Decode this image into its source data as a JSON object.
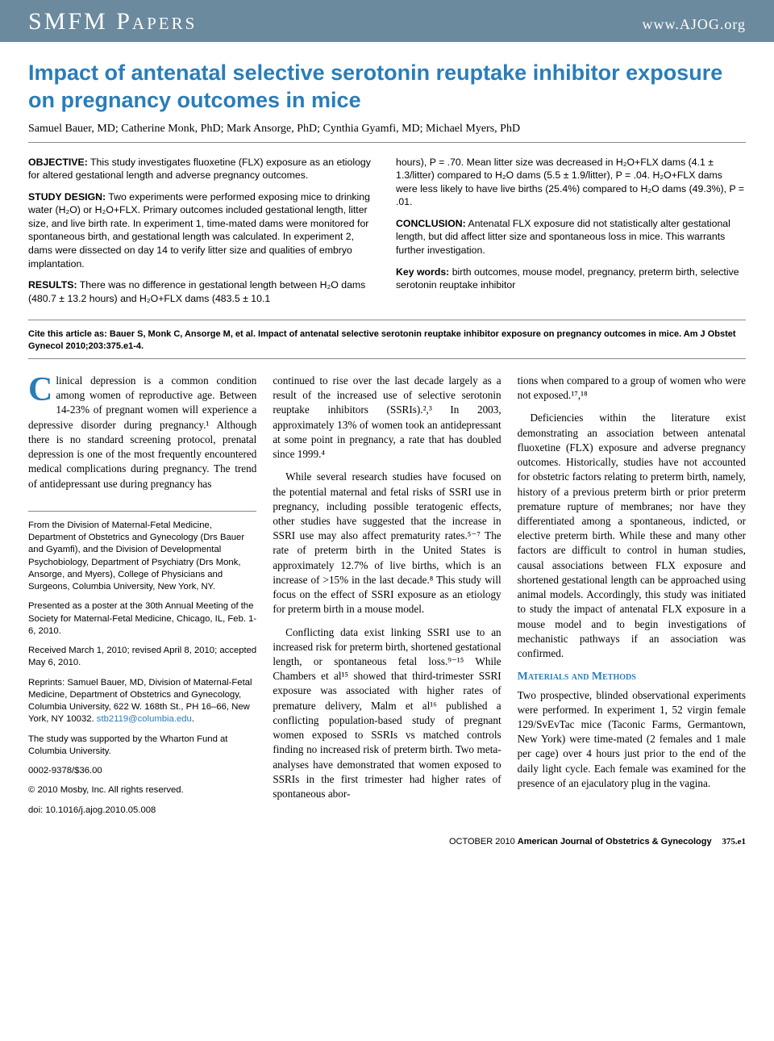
{
  "header": {
    "section": "SMFM Papers",
    "site": "www.AJOG.org"
  },
  "title": "Impact of antenatal selective serotonin reuptake inhibitor exposure on pregnancy outcomes in mice",
  "authors": "Samuel Bauer, MD; Catherine Monk, PhD; Mark Ansorge, PhD; Cynthia Gyamfi, MD; Michael Myers, PhD",
  "abstract": {
    "left": {
      "objective_label": "OBJECTIVE:",
      "objective": " This study investigates fluoxetine (FLX) exposure as an etiology for altered gestational length and adverse pregnancy outcomes.",
      "design_label": "STUDY DESIGN:",
      "design": " Two experiments were performed exposing mice to drinking water (H₂O) or H₂O+FLX. Primary outcomes included gestational length, litter size, and live birth rate. In experiment 1, time-mated dams were monitored for spontaneous birth, and gestational length was calculated. In experiment 2, dams were dissected on day 14 to verify litter size and qualities of embryo implantation.",
      "results_label": "RESULTS:",
      "results": " There was no difference in gestational length between H₂O dams (480.7 ± 13.2 hours) and H₂O+FLX dams (483.5 ± 10.1"
    },
    "right": {
      "results_cont": "hours), P = .70. Mean litter size was decreased in H₂O+FLX dams (4.1 ± 1.3/litter) compared to H₂O dams (5.5 ± 1.9/litter), P = .04. H₂O+FLX dams were less likely to have live births (25.4%) compared to H₂O dams (49.3%), P = .01.",
      "conclusion_label": "CONCLUSION:",
      "conclusion": " Antenatal FLX exposure did not statistically alter gestational length, but did affect litter size and spontaneous loss in mice. This warrants further investigation.",
      "keywords_label": "Key words:",
      "keywords": " birth outcomes, mouse model, pregnancy, preterm birth, selective serotonin reuptake inhibitor"
    }
  },
  "citation": {
    "lead": "Cite this article as: ",
    "text": "Bauer S, Monk C, Ansorge M, et al. Impact of antenatal selective serotonin reuptake inhibitor exposure on pregnancy outcomes in mice. Am J Obstet Gynecol 2010;203:375.e1-4."
  },
  "body": {
    "col1": {
      "p1_drop": "C",
      "p1": "linical depression is a common condition among women of reproductive age. Between 14-23% of pregnant women will experience a depressive disorder during pregnancy.¹ Although there is no standard screening protocol, prenatal depression is one of the most frequently encountered medical complications during pregnancy. The trend of antidepressant use during pregnancy has",
      "affil": {
        "p1": "From the Division of Maternal-Fetal Medicine, Department of Obstetrics and Gynecology (Drs Bauer and Gyamfi), and the Division of Developmental Psychobiology, Department of Psychiatry (Drs Monk, Ansorge, and Myers), College of Physicians and Surgeons, Columbia University, New York, NY.",
        "p2": "Presented as a poster at the 30th Annual Meeting of the Society for Maternal-Fetal Medicine, Chicago, IL, Feb. 1-6, 2010.",
        "p3": "Received March 1, 2010; revised April 8, 2010; accepted May 6, 2010.",
        "p4a": "Reprints: Samuel Bauer, MD, Division of Maternal-Fetal Medicine, Department of Obstetrics and Gynecology, Columbia University, 622 W. 168th St., PH 16–66, New York, NY 10032. ",
        "p4_email": "stb2119@columbia.edu",
        "p4b": ".",
        "p5": "The study was supported by the Wharton Fund at Columbia University.",
        "p6": "0002-9378/$36.00",
        "p7": "© 2010 Mosby, Inc. All rights reserved.",
        "p8": "doi: 10.1016/j.ajog.2010.05.008"
      }
    },
    "col2": {
      "p1": "continued to rise over the last decade largely as a result of the increased use of selective serotonin reuptake inhibitors (SSRIs).²,³ In 2003, approximately 13% of women took an antidepressant at some point in pregnancy, a rate that has doubled since 1999.⁴",
      "p2": "While several research studies have focused on the potential maternal and fetal risks of SSRI use in pregnancy, including possible teratogenic effects, other studies have suggested that the increase in SSRI use may also affect prematurity rates.⁵⁻⁷ The rate of preterm birth in the United States is approximately 12.7% of live births, which is an increase of >15% in the last decade.⁸ This study will focus on the effect of SSRI exposure as an etiology for preterm birth in a mouse model.",
      "p3": "Conflicting data exist linking SSRI use to an increased risk for preterm birth, shortened gestational length, or spontaneous fetal loss.⁹⁻¹⁵ While Chambers et al¹⁵ showed that third-trimester SSRI exposure was associated with higher rates of premature delivery, Malm et al¹⁶ published a conflicting population-based study of pregnant women exposed to SSRIs vs matched controls finding no increased risk of preterm birth. Two meta-analyses have demonstrated that women exposed to SSRIs in the first trimester had higher rates of spontaneous abor-"
    },
    "col3": {
      "p1": "tions when compared to a group of women who were not exposed.¹⁷,¹⁸",
      "p2": "Deficiencies within the literature exist demonstrating an association between antenatal fluoxetine (FLX) exposure and adverse pregnancy outcomes. Historically, studies have not accounted for obstetric factors relating to preterm birth, namely, history of a previous preterm birth or prior preterm premature rupture of membranes; nor have they differentiated among a spontaneous, indicted, or elective preterm birth. While these and many other factors are difficult to control in human studies, causal associations between FLX exposure and shortened gestational length can be approached using animal models. Accordingly, this study was initiated to study the impact of antenatal FLX exposure in a mouse model and to begin investigations of mechanistic pathways if an association was confirmed.",
      "methods_hd": "Materials and Methods",
      "p3": "Two prospective, blinded observational experiments were performed. In experiment 1, 52 virgin female 129/SvEvTac mice (Taconic Farms, Germantown, New York) were time-mated (2 females and 1 male per cage) over 4 hours just prior to the end of the daily light cycle. Each female was examined for the presence of an ejaculatory plug in the vagina."
    }
  },
  "footer": {
    "issue": "OCTOBER 2010 ",
    "journal": "American Journal of Obstetrics & Gynecology",
    "page": "375.e1"
  },
  "colors": {
    "band": "#6b8a9e",
    "accent": "#2a7db8"
  }
}
